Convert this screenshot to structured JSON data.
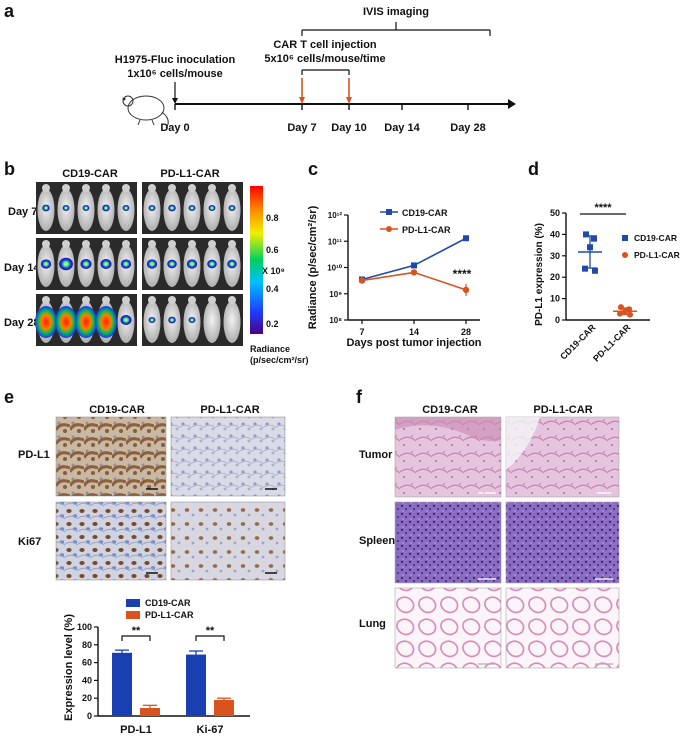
{
  "panel_a": {
    "letter": "a",
    "ivis_label": "IVIS imaging",
    "inoculation_line1": "H1975-Fluc inoculation",
    "inoculation_line2": "1x10⁶ cells/mouse",
    "cart_line1": "CAR T cell injection",
    "cart_line2": "5x10⁶ cells/mouse/time",
    "days": [
      "Day 0",
      "Day 7",
      "Day 10",
      "Day 14",
      "Day 28"
    ]
  },
  "panel_b": {
    "letter": "b",
    "groups": [
      "CD19-CAR",
      "PD-L1-CAR"
    ],
    "rows": [
      "Day 7",
      "Day 14",
      "Day 28"
    ],
    "colorbar_ticks": [
      "0.8",
      "0.6",
      "0.4",
      "0.2"
    ],
    "colorbar_unit": "X 10⁹",
    "colorbar_title_1": "Radiance",
    "colorbar_title_2": "(p/sec/cm²/sr)"
  },
  "panel_c": {
    "letter": "c",
    "significance": "****",
    "chart_data": {
      "type": "line",
      "x": [
        7,
        14,
        28
      ],
      "xlabel": "Days post tumor injection",
      "ylabel": "Radiance (p/sec/cm²/sr)",
      "yscale": "log",
      "ylim": [
        100000000,
        1000000000000
      ],
      "ytick_labels": [
        "10⁸",
        "10⁹",
        "10¹⁰",
        "10¹¹",
        "10¹²"
      ],
      "series": [
        {
          "name": "CD19-CAR",
          "color": "#1f4aa8",
          "marker": "square",
          "values": [
            3500000000,
            12000000000,
            130000000000
          ]
        },
        {
          "name": "PD-L1-CAR",
          "color": "#d9531e",
          "marker": "circle",
          "values": [
            3200000000,
            6500000000,
            1400000000
          ]
        }
      ],
      "legend": "top-right"
    }
  },
  "panel_d": {
    "letter": "d",
    "significance": "****",
    "chart_data": {
      "type": "scatter",
      "categories": [
        "CD19-CAR",
        "PD-L1-CAR"
      ],
      "ylabel": "PD-L1 expression (%)",
      "ylim": [
        0,
        50
      ],
      "yticks": [
        0,
        10,
        20,
        30,
        40,
        50
      ],
      "series": [
        {
          "name": "CD19-CAR",
          "color": "#1f4aa8",
          "marker": "square",
          "values": [
            40,
            38,
            34,
            24,
            23
          ],
          "mean": 31.8,
          "sd": 7.5
        },
        {
          "name": "PD-L1-CAR",
          "color": "#d9531e",
          "marker": "circle",
          "values": [
            6,
            5,
            4,
            3,
            2.5
          ],
          "mean": 4.1,
          "sd": 1.5
        }
      ],
      "legend": "right"
    }
  },
  "panel_e": {
    "letter": "e",
    "groups": [
      "CD19-CAR",
      "PD-L1-CAR"
    ],
    "rows": [
      "PD-L1",
      "Ki67"
    ],
    "chart_data": {
      "type": "bar",
      "categories": [
        "PD-L1",
        "Ki-67"
      ],
      "ylabel": "Expression level (%)",
      "ylim": [
        0,
        100
      ],
      "yticks": [
        0,
        20,
        40,
        60,
        80,
        100
      ],
      "series": [
        {
          "name": "CD19-CAR",
          "color": "#1a3fb0",
          "values": [
            71,
            69
          ],
          "errors": [
            3,
            4
          ]
        },
        {
          "name": "PD-L1-CAR",
          "color": "#d9531e",
          "values": [
            9,
            18
          ],
          "errors": [
            3,
            2
          ]
        }
      ],
      "significance": [
        "**",
        "**"
      ],
      "legend": "top"
    }
  },
  "panel_f": {
    "letter": "f",
    "groups": [
      "CD19-CAR",
      "PD-L1-CAR"
    ],
    "rows": [
      "Tumor",
      "Spleen",
      "Lung"
    ]
  },
  "colors": {
    "blue": "#1f4aa8",
    "orange": "#d9531e",
    "arrow_red": "#d9531e",
    "ihc_brown": "#8a5a2b",
    "he_pink": "#d7a2c8",
    "he_purple": "#6a4aa0"
  }
}
